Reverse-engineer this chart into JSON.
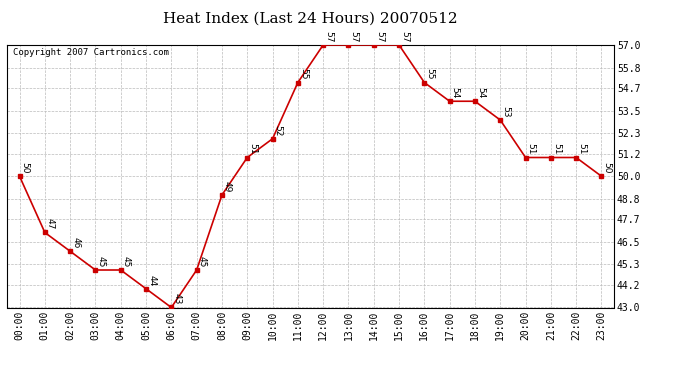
{
  "title": "Heat Index (Last 24 Hours) 20070512",
  "copyright": "Copyright 2007 Cartronics.com",
  "hours": [
    "00:00",
    "01:00",
    "02:00",
    "03:00",
    "04:00",
    "05:00",
    "06:00",
    "07:00",
    "08:00",
    "09:00",
    "10:00",
    "11:00",
    "12:00",
    "13:00",
    "14:00",
    "15:00",
    "16:00",
    "17:00",
    "18:00",
    "19:00",
    "20:00",
    "21:00",
    "22:00",
    "23:00"
  ],
  "values": [
    50,
    47,
    46,
    45,
    45,
    44,
    43,
    45,
    49,
    51,
    52,
    55,
    57,
    57,
    57,
    57,
    55,
    54,
    54,
    53,
    51,
    51,
    51,
    50
  ],
  "line_color": "#cc0000",
  "marker_color": "#cc0000",
  "bg_color": "#ffffff",
  "grid_color": "#bbbbbb",
  "ylim_min": 43.0,
  "ylim_max": 57.0,
  "yticks": [
    43.0,
    44.2,
    45.3,
    46.5,
    47.7,
    48.8,
    50.0,
    51.2,
    52.3,
    53.5,
    54.7,
    55.8,
    57.0
  ],
  "title_fontsize": 11,
  "label_fontsize": 7,
  "annotation_fontsize": 6.5
}
